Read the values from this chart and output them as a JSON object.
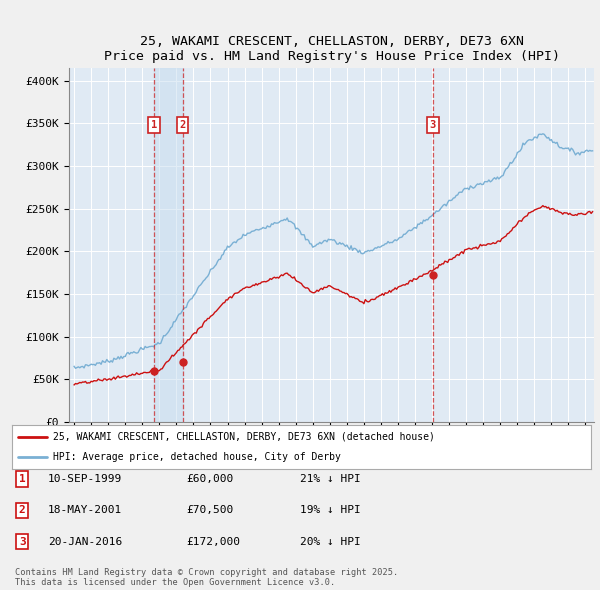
{
  "title_line1": "25, WAKAMI CRESCENT, CHELLASTON, DERBY, DE73 6XN",
  "title_line2": "Price paid vs. HM Land Registry's House Price Index (HPI)",
  "ylabel_ticks": [
    "£0",
    "£50K",
    "£100K",
    "£150K",
    "£200K",
    "£250K",
    "£300K",
    "£350K",
    "£400K"
  ],
  "ytick_values": [
    0,
    50000,
    100000,
    150000,
    200000,
    250000,
    300000,
    350000,
    400000
  ],
  "ylim": [
    0,
    415000
  ],
  "xlim_start": 1994.7,
  "xlim_end": 2025.5,
  "hpi_color": "#7ab0d4",
  "price_color": "#cc1111",
  "bg_color": "#f0f0f0",
  "plot_bg": "#e0eaf4",
  "grid_color": "#ffffff",
  "marker_dates": [
    1999.7,
    2001.37,
    2016.05
  ],
  "marker_prices": [
    60000,
    70500,
    172000
  ],
  "marker_labels": [
    "1",
    "2",
    "3"
  ],
  "legend_line1": "25, WAKAMI CRESCENT, CHELLASTON, DERBY, DE73 6XN (detached house)",
  "legend_line2": "HPI: Average price, detached house, City of Derby",
  "table_rows": [
    [
      "1",
      "10-SEP-1999",
      "£60,000",
      "21% ↓ HPI"
    ],
    [
      "2",
      "18-MAY-2001",
      "£70,500",
      "19% ↓ HPI"
    ],
    [
      "3",
      "20-JAN-2016",
      "£172,000",
      "20% ↓ HPI"
    ]
  ],
  "footnote": "Contains HM Land Registry data © Crown copyright and database right 2025.\nThis data is licensed under the Open Government Licence v3.0."
}
